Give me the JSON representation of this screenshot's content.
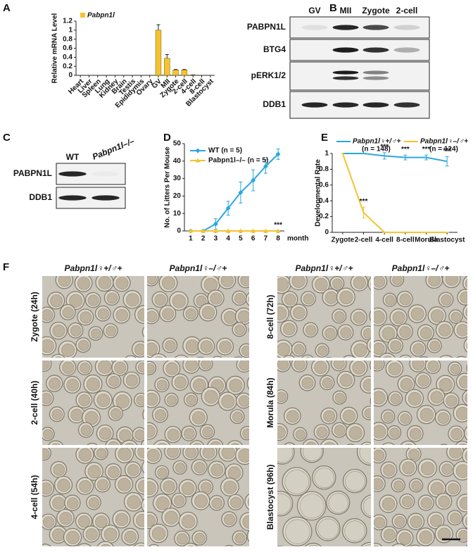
{
  "chart_data": [
    {
      "type": "bar",
      "label": "A",
      "ylabel": "Relative mRNA Level",
      "categories": [
        "Heart",
        "Liver",
        "Spleen",
        "Lung",
        "Kidney",
        "Brain",
        "Testis",
        "Epididymis",
        "Ovary",
        "GV",
        "MII",
        "Zygote",
        "2-cell",
        "4-cell",
        "8-cell",
        "Blastocyst"
      ],
      "series": [
        {
          "name": "Pabpn1l",
          "color": "#f4c430",
          "values": [
            0,
            0,
            0,
            0,
            0,
            0,
            0,
            0,
            0,
            1.0,
            0.38,
            0.12,
            0.12,
            0.01,
            0,
            0
          ],
          "errors": [
            0,
            0,
            0,
            0,
            0,
            0,
            0,
            0,
            0,
            0.12,
            0.08,
            0.01,
            0.01,
            0,
            0,
            0
          ]
        }
      ],
      "ylim": [
        0,
        1.2
      ],
      "yticks": [
        0,
        0.2,
        0.4,
        0.6,
        0.8,
        1,
        1.2
      ]
    },
    {
      "type": "line",
      "label": "D",
      "ylabel": "No. of Litters Per Mouse",
      "xlabel": "month",
      "x": [
        1,
        2,
        3,
        4,
        5,
        6,
        7,
        8
      ],
      "xlim": [
        0.5,
        8.5
      ],
      "xticks": [
        1,
        2,
        3,
        4,
        5,
        6,
        7,
        8
      ],
      "ylim": [
        0,
        50
      ],
      "yticks": [
        0,
        10,
        20,
        30,
        40,
        50
      ],
      "series": [
        {
          "name": "WT (n = 5)",
          "color": "#29a8e0",
          "marker": "diamond",
          "values": [
            0,
            0,
            4,
            13,
            22,
            29,
            37,
            44
          ],
          "errors": [
            0,
            0,
            3,
            4,
            6,
            6,
            4,
            3
          ]
        },
        {
          "name": "Pabpn1l–/– (n = 5)",
          "color": "#f4c430",
          "marker": "triangle",
          "values": [
            0,
            0,
            0,
            0,
            0,
            0,
            0,
            0
          ],
          "errors": [
            0,
            0,
            0,
            0,
            0,
            0,
            0,
            0
          ]
        }
      ],
      "annotations": [
        {
          "text": "***",
          "x": 8
        }
      ]
    },
    {
      "type": "line",
      "label": "E",
      "ylabel": "Developmental Rate",
      "categories": [
        "Zygote",
        "2-cell",
        "4-cell",
        "8-cell",
        "Morula",
        "Blastocyst"
      ],
      "ylim": [
        0,
        1
      ],
      "yticks": [
        0,
        0.2,
        0.4,
        0.6,
        0.8,
        1
      ],
      "series": [
        {
          "name": "Pabpn1l♀+/♂+",
          "sample_size": "(n = 148)",
          "color": "#29a8e0",
          "values": [
            1,
            1,
            0.97,
            0.95,
            0.95,
            0.9
          ],
          "errors": [
            0,
            0,
            0.04,
            0.03,
            0.03,
            0.06
          ]
        },
        {
          "name": "Pabpn1l♀–/♂+",
          "sample_size": "(n = 124)",
          "color": "#f4c430",
          "values": [
            1,
            0.25,
            0,
            0,
            0,
            0
          ],
          "errors": [
            0,
            0.07,
            0,
            0,
            0,
            0
          ]
        }
      ],
      "annotations": [
        {
          "text": "***",
          "category": "2-cell"
        },
        {
          "text": "***",
          "category": "4-cell"
        },
        {
          "text": "***",
          "category": "8-cell"
        },
        {
          "text": "***",
          "category": "Morula"
        },
        {
          "text": "***",
          "category": "Blastocyst"
        }
      ]
    }
  ],
  "blot_b": {
    "label": "B",
    "columns": [
      "GV",
      "MII",
      "Zygote",
      "2-cell"
    ],
    "rows": [
      "PABPN1L",
      "BTG4",
      "pERK1/2",
      "DDB1"
    ]
  },
  "blot_c": {
    "label": "C",
    "columns": [
      "WT",
      "Pabpn1l–/–"
    ],
    "rows": [
      "PABPN1L",
      "DDB1"
    ]
  },
  "micrographs": {
    "label": "F",
    "column_headers": [
      "Pabpn1l♀+/♂+",
      "Pabpn1l♀–/♂+",
      "Pabpn1l♀+/♂+",
      "Pabpn1l♀–/♂+"
    ],
    "row_labels": [
      "Zygote (24h)",
      "2-cell (40h)",
      "4-cell (54h)",
      "8-cell (72h)",
      "Morula (84h)",
      "Blastocyst (96h)"
    ]
  }
}
